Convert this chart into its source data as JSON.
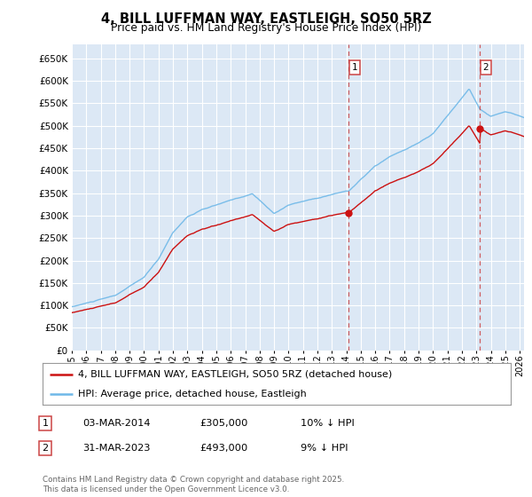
{
  "title": "4, BILL LUFFMAN WAY, EASTLEIGH, SO50 5RZ",
  "subtitle": "Price paid vs. HM Land Registry's House Price Index (HPI)",
  "ylim": [
    0,
    680000
  ],
  "yticks": [
    0,
    50000,
    100000,
    150000,
    200000,
    250000,
    300000,
    350000,
    400000,
    450000,
    500000,
    550000,
    600000,
    650000
  ],
  "xlim_start": 1995.0,
  "xlim_end": 2026.3,
  "hpi_color": "#6eb8e8",
  "price_color": "#cc1111",
  "vline_color": "#cc4444",
  "sale1_x": 2014.17,
  "sale1_y": 305000,
  "sale1_label": "1",
  "sale2_x": 2023.25,
  "sale2_y": 493000,
  "sale2_label": "2",
  "legend_line1": "4, BILL LUFFMAN WAY, EASTLEIGH, SO50 5RZ (detached house)",
  "legend_line2": "HPI: Average price, detached house, Eastleigh",
  "table_row1": [
    "1",
    "03-MAR-2014",
    "£305,000",
    "10% ↓ HPI"
  ],
  "table_row2": [
    "2",
    "31-MAR-2023",
    "£493,000",
    "9% ↓ HPI"
  ],
  "footnote": "Contains HM Land Registry data © Crown copyright and database right 2025.\nThis data is licensed under the Open Government Licence v3.0.",
  "bg_color": "#ffffff",
  "plot_bg_color": "#dce8f5",
  "grid_color": "#ffffff"
}
